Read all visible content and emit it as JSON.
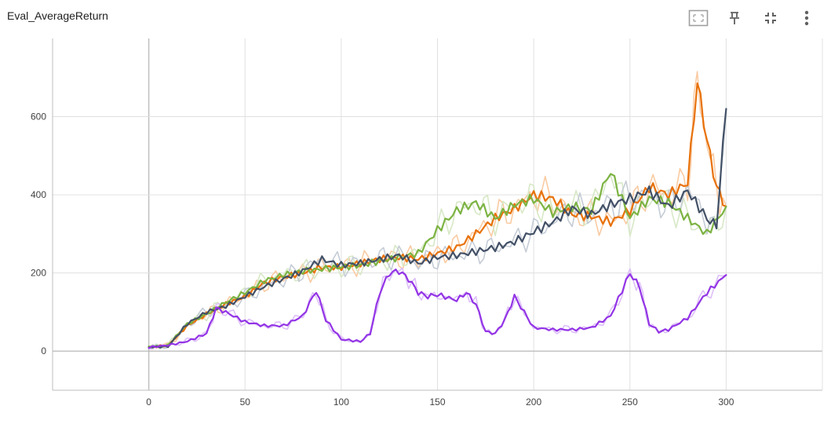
{
  "card": {
    "title": "Eval_AverageReturn",
    "icons": [
      "fit-domain-icon",
      "pin-icon",
      "collapse-icon",
      "more-vert-icon"
    ]
  },
  "chart_data": {
    "type": "line",
    "title": "Eval_AverageReturn",
    "xlabel": "",
    "ylabel": "",
    "xlim": [
      -50,
      350
    ],
    "ylim": [
      -100,
      800
    ],
    "x_ticks": [
      0,
      50,
      100,
      150,
      200,
      250,
      300
    ],
    "y_ticks": [
      0,
      200,
      400,
      600
    ],
    "grid": true,
    "legend": "none",
    "series": [
      {
        "color": "#e8710a",
        "raw_color": "#f9cba3",
        "points": [
          [
            0,
            10
          ],
          [
            10,
            15
          ],
          [
            20,
            65
          ],
          [
            30,
            95
          ],
          [
            40,
            120
          ],
          [
            50,
            140
          ],
          [
            60,
            175
          ],
          [
            70,
            190
          ],
          [
            80,
            200
          ],
          [
            90,
            215
          ],
          [
            100,
            215
          ],
          [
            110,
            225
          ],
          [
            120,
            235
          ],
          [
            130,
            240
          ],
          [
            140,
            235
          ],
          [
            150,
            250
          ],
          [
            160,
            265
          ],
          [
            170,
            300
          ],
          [
            180,
            340
          ],
          [
            190,
            365
          ],
          [
            200,
            400
          ],
          [
            210,
            390
          ],
          [
            220,
            350
          ],
          [
            230,
            345
          ],
          [
            240,
            330
          ],
          [
            250,
            360
          ],
          [
            260,
            420
          ],
          [
            270,
            400
          ],
          [
            280,
            430
          ],
          [
            285,
            690
          ],
          [
            290,
            540
          ],
          [
            295,
            420
          ],
          [
            300,
            370
          ]
        ]
      },
      {
        "color": "#7cb342",
        "raw_color": "#d7e8c6",
        "points": [
          [
            0,
            10
          ],
          [
            10,
            15
          ],
          [
            20,
            70
          ],
          [
            30,
            95
          ],
          [
            40,
            125
          ],
          [
            50,
            150
          ],
          [
            60,
            180
          ],
          [
            70,
            195
          ],
          [
            80,
            205
          ],
          [
            90,
            210
          ],
          [
            100,
            215
          ],
          [
            110,
            220
          ],
          [
            120,
            230
          ],
          [
            130,
            240
          ],
          [
            140,
            250
          ],
          [
            150,
            310
          ],
          [
            160,
            360
          ],
          [
            170,
            380
          ],
          [
            180,
            340
          ],
          [
            190,
            375
          ],
          [
            200,
            390
          ],
          [
            210,
            355
          ],
          [
            220,
            370
          ],
          [
            230,
            360
          ],
          [
            240,
            460
          ],
          [
            250,
            340
          ],
          [
            260,
            390
          ],
          [
            270,
            380
          ],
          [
            280,
            340
          ],
          [
            290,
            300
          ],
          [
            300,
            370
          ]
        ]
      },
      {
        "color": "#425066",
        "raw_color": "#c5ccd6",
        "points": [
          [
            0,
            10
          ],
          [
            10,
            12
          ],
          [
            20,
            70
          ],
          [
            30,
            100
          ],
          [
            40,
            115
          ],
          [
            50,
            140
          ],
          [
            60,
            165
          ],
          [
            70,
            185
          ],
          [
            80,
            205
          ],
          [
            90,
            235
          ],
          [
            100,
            220
          ],
          [
            110,
            225
          ],
          [
            120,
            235
          ],
          [
            130,
            245
          ],
          [
            140,
            225
          ],
          [
            150,
            240
          ],
          [
            160,
            245
          ],
          [
            170,
            255
          ],
          [
            180,
            265
          ],
          [
            190,
            280
          ],
          [
            200,
            305
          ],
          [
            210,
            330
          ],
          [
            220,
            365
          ],
          [
            230,
            350
          ],
          [
            240,
            375
          ],
          [
            250,
            390
          ],
          [
            260,
            410
          ],
          [
            270,
            370
          ],
          [
            280,
            410
          ],
          [
            290,
            340
          ],
          [
            295,
            320
          ],
          [
            300,
            620
          ]
        ]
      },
      {
        "color": "#9334e6",
        "raw_color": "#ddc0f7",
        "points": [
          [
            0,
            10
          ],
          [
            10,
            15
          ],
          [
            20,
            25
          ],
          [
            30,
            45
          ],
          [
            35,
            110
          ],
          [
            40,
            100
          ],
          [
            50,
            75
          ],
          [
            60,
            65
          ],
          [
            70,
            65
          ],
          [
            80,
            90
          ],
          [
            87,
            155
          ],
          [
            92,
            80
          ],
          [
            100,
            30
          ],
          [
            110,
            25
          ],
          [
            115,
            45
          ],
          [
            120,
            150
          ],
          [
            125,
            200
          ],
          [
            130,
            205
          ],
          [
            135,
            185
          ],
          [
            140,
            150
          ],
          [
            145,
            140
          ],
          [
            150,
            145
          ],
          [
            160,
            130
          ],
          [
            165,
            150
          ],
          [
            170,
            120
          ],
          [
            175,
            50
          ],
          [
            180,
            45
          ],
          [
            185,
            80
          ],
          [
            190,
            140
          ],
          [
            195,
            100
          ],
          [
            200,
            60
          ],
          [
            210,
            55
          ],
          [
            220,
            55
          ],
          [
            230,
            60
          ],
          [
            240,
            90
          ],
          [
            250,
            200
          ],
          [
            255,
            165
          ],
          [
            260,
            70
          ],
          [
            265,
            50
          ],
          [
            270,
            55
          ],
          [
            280,
            85
          ],
          [
            290,
            150
          ],
          [
            300,
            195
          ]
        ]
      }
    ]
  }
}
